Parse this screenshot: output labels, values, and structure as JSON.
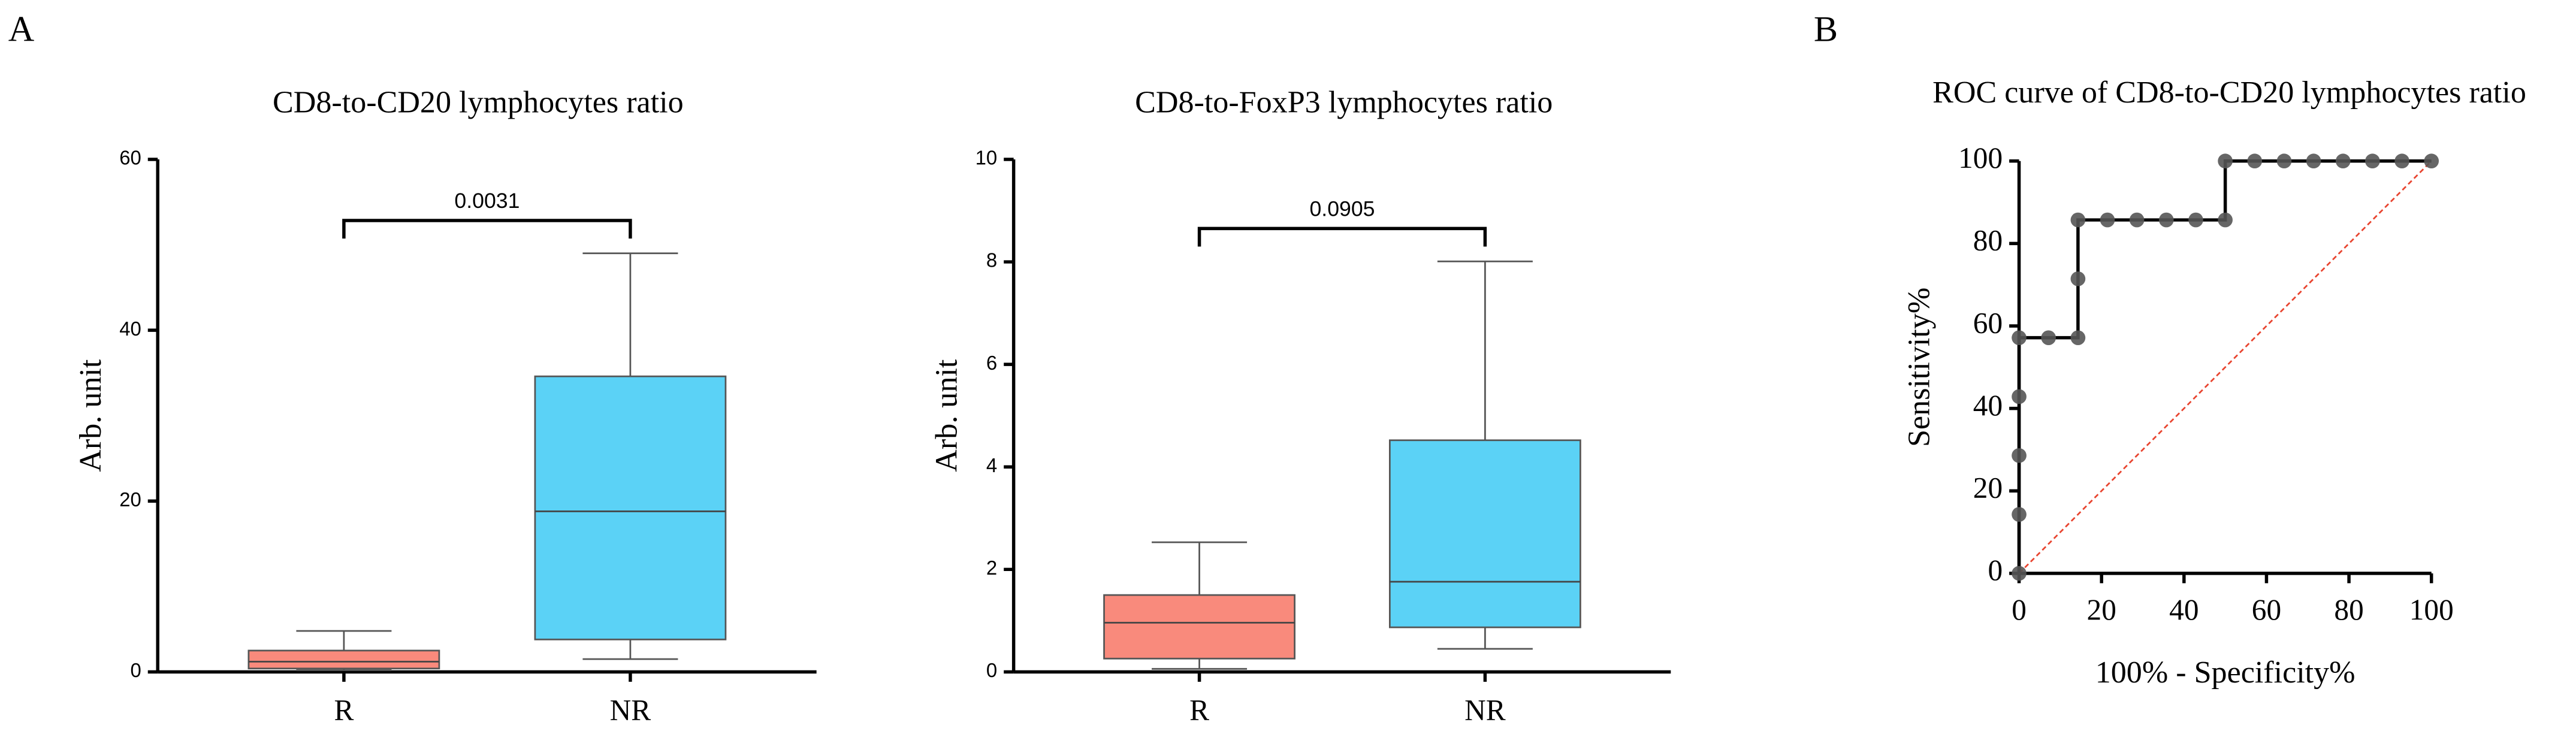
{
  "panels": [
    "A",
    "B"
  ],
  "chart_data": [
    {
      "type": "box",
      "title": "CD8-to-CD20 lymphocytes ratio",
      "ylabel": "Arb. unit",
      "categories": [
        "R",
        "NR"
      ],
      "colors": [
        "#f98a7c",
        "#5bd2f6"
      ],
      "boxes": [
        {
          "min": 0.2,
          "q1": 0.4,
          "median": 1.2,
          "q3": 2.5,
          "max": 4.8
        },
        {
          "min": 1.5,
          "q1": 3.8,
          "median": 18.8,
          "q3": 34.6,
          "max": 49
        }
      ],
      "ylim": [
        0,
        60
      ],
      "yticks": [
        0,
        20,
        40,
        60
      ],
      "annotation": "0.0031"
    },
    {
      "type": "box",
      "title": "CD8-to-FoxP3 lymphocytes ratio",
      "ylabel": "Arb. unit",
      "categories": [
        "R",
        "NR"
      ],
      "colors": [
        "#f98a7c",
        "#5bd2f6"
      ],
      "boxes": [
        {
          "min": 0.06,
          "q1": 0.26,
          "median": 0.96,
          "q3": 1.5,
          "max": 2.53
        },
        {
          "min": 0.45,
          "q1": 0.87,
          "median": 1.76,
          "q3": 4.52,
          "max": 8.01
        }
      ],
      "ylim": [
        0,
        10
      ],
      "yticks": [
        0,
        2,
        4,
        6,
        8,
        10
      ],
      "annotation": "0.0905"
    },
    {
      "type": "line",
      "title": "ROC curve of CD8-to-CD20 lymphocytes ratio",
      "xlabel": "100% - Specificity%",
      "ylabel": "Sensitivity%",
      "x": [
        0,
        0,
        0,
        0,
        0,
        7.14,
        14.29,
        14.29,
        14.29,
        21.43,
        28.57,
        35.71,
        42.86,
        50,
        50,
        57.14,
        64.29,
        71.43,
        78.57,
        85.71,
        92.86,
        100
      ],
      "series": [
        {
          "color": "#555555",
          "values": [
            0,
            14.29,
            28.57,
            42.86,
            57.14,
            57.14,
            57.14,
            71.43,
            85.71,
            85.71,
            85.71,
            85.71,
            85.71,
            85.71,
            100,
            100,
            100,
            100,
            100,
            100,
            100,
            100
          ]
        }
      ],
      "xlim": [
        0,
        100
      ],
      "ylim": [
        0,
        100
      ],
      "xticks": [
        0,
        20,
        40,
        60,
        80,
        100
      ],
      "yticks": [
        0,
        20,
        40,
        60,
        80,
        100
      ],
      "diagonal": true,
      "diagonal_color": "#e8432e"
    }
  ]
}
